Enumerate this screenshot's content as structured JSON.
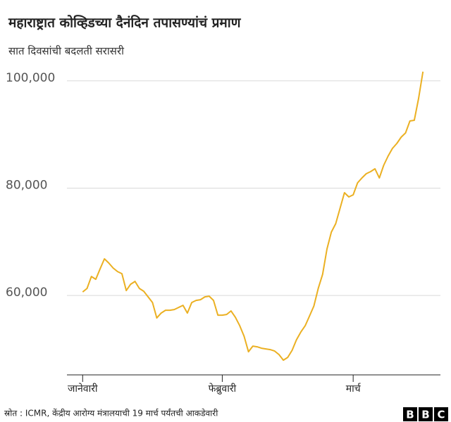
{
  "chart_data": {
    "type": "line",
    "title": "महाराष्ट्रात कोव्हिडच्या दैनंदिन तपासण्यांचं प्रमाण",
    "subtitle": "सात दिवसांची बदलती सरासरी",
    "x": [
      0,
      1,
      2,
      3,
      4,
      5,
      6,
      7,
      8,
      9,
      10,
      11,
      12,
      13,
      14,
      15,
      16,
      17,
      18,
      19,
      20,
      21,
      22,
      23,
      24,
      25,
      26,
      27,
      28,
      29,
      30,
      31,
      32,
      33,
      34,
      35,
      36,
      37,
      38,
      39,
      40,
      41,
      42,
      43,
      44,
      45,
      46,
      47,
      48,
      49,
      50,
      51,
      52,
      53,
      54,
      55,
      56,
      57,
      58,
      59,
      60,
      61,
      62,
      63,
      64,
      65,
      66,
      67,
      68,
      69,
      70,
      71,
      72,
      73,
      74,
      75,
      76,
      77,
      78
    ],
    "values": [
      60655,
      61311,
      63540,
      63015,
      64982,
      66817,
      66031,
      65113,
      64457,
      64064,
      60918,
      62098,
      62622,
      61311,
      60787,
      59738,
      58689,
      55805,
      56722,
      57247,
      57247,
      57378,
      57771,
      58165,
      56722,
      58689,
      59082,
      59213,
      59738,
      59869,
      59082,
      56329,
      56329,
      56460,
      57116,
      55936,
      54363,
      52396,
      49512,
      50561,
      50430,
      50168,
      50036,
      49905,
      49643,
      48988,
      47939,
      48463,
      49774,
      51741,
      53183,
      54363,
      56198,
      58034,
      61311,
      63933,
      68653,
      71799,
      73372,
      76256,
      79140,
      78354,
      78747,
      80976,
      81893,
      82680,
      83074,
      83598,
      81893,
      84253,
      85958,
      87400,
      88318,
      89498,
      90284,
      92513,
      92644,
      96708,
      101690
    ],
    "color": "#ebb022",
    "xlim": [
      -3.6,
      82
    ],
    "xticks": [
      {
        "value": 0,
        "label": "जानेवारी"
      },
      {
        "value": 32,
        "label": "फेब्रुवारी"
      },
      {
        "value": 62,
        "label": "मार्च"
      }
    ],
    "ylim": [
      45200,
      102600
    ],
    "yticks": [
      {
        "value": 60000,
        "label": "60,000"
      },
      {
        "value": 80000,
        "label": "80,000"
      },
      {
        "value": 100000,
        "label": "100,000"
      }
    ],
    "grid": true
  },
  "footer": {
    "source": "स्रोत : ICMR, केंद्रीय आरोग्य मंत्रालयाची 19 मार्च पर्यंतची आकडेवारी",
    "logo": [
      "B",
      "B",
      "C"
    ]
  }
}
